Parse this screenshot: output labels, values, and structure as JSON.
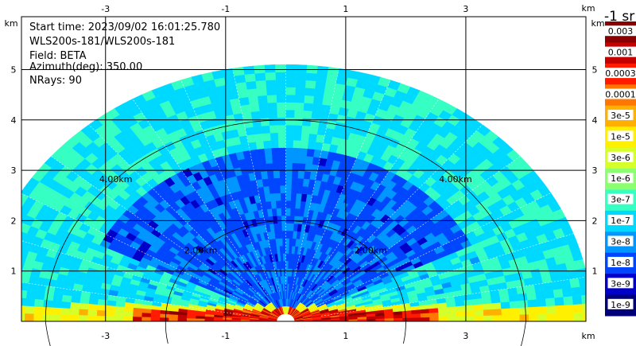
{
  "chart_data": {
    "type": "heatmap",
    "subtype": "ppi-radar-sector",
    "info": {
      "start_time": "Start time: 2023/09/02 16:01:25.780",
      "instrument": "WLS200s-181/WLS200s-181",
      "field": "Field: BETA",
      "azimuth": "Azimuth(deg): 350.00",
      "nrays": "NRays: 90"
    },
    "x_unit": "km",
    "y_unit": "km",
    "xlim": [
      -4.4,
      5.0
    ],
    "ylim": [
      0,
      6.05
    ],
    "x_ticks": [
      -3,
      -1,
      1,
      3
    ],
    "y_ticks": [
      1,
      2,
      3,
      4,
      5
    ],
    "x_tick_labels": [
      "-3",
      "-1",
      "1",
      "3"
    ],
    "y_tick_labels": [
      "1",
      "2",
      "3",
      "4",
      "5"
    ],
    "range_rings_km": [
      2,
      4
    ],
    "range_ring_labels": [
      "2.00km",
      "4.00km"
    ],
    "max_range_km": 5.1,
    "nrays": 90,
    "grid": true,
    "colorbar": {
      "title": "-1 sr",
      "labels": [
        "0.003",
        "0.001",
        "0.0003",
        "0.0001",
        "3e-5",
        "1e-5",
        "3e-6",
        "1e-6",
        "3e-7",
        "1e-7",
        "3e-8",
        "1e-8",
        "3e-9",
        "1e-9"
      ],
      "colors": [
        "#8a0000",
        "#c40000",
        "#ff1a00",
        "#ff7700",
        "#ffb000",
        "#ffef00",
        "#d6ff29",
        "#8cff70",
        "#36ffc4",
        "#00d9ff",
        "#0096ff",
        "#0046ff",
        "#0000c8",
        "#000078"
      ]
    }
  }
}
